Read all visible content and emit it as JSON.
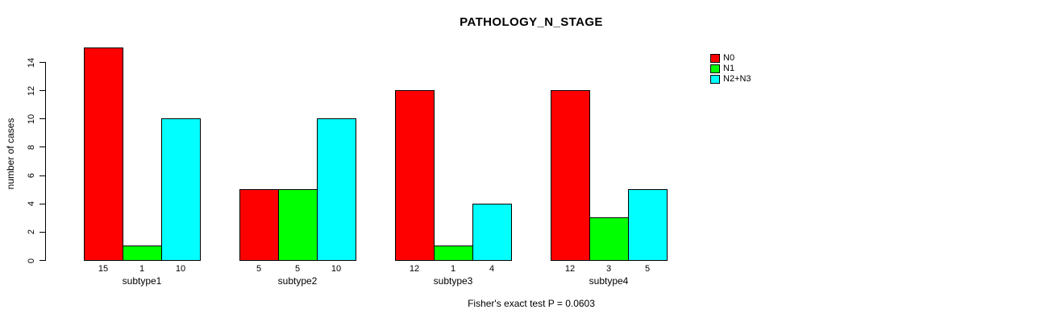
{
  "chart_data": {
    "type": "bar",
    "title": "PATHOLOGY_N_STAGE",
    "ylabel": "number of cases",
    "xlabel": "",
    "categories": [
      "subtype1",
      "subtype2",
      "subtype3",
      "subtype4"
    ],
    "series": [
      {
        "name": "N0",
        "color": "#ff0000",
        "values": [
          15,
          5,
          12,
          12
        ]
      },
      {
        "name": "N1",
        "color": "#00ff00",
        "values": [
          1,
          5,
          1,
          3
        ]
      },
      {
        "name": "N2+N3",
        "color": "#00ffff",
        "values": [
          10,
          10,
          4,
          5
        ]
      }
    ],
    "bar_value_labels_shown": true,
    "ylim": [
      0,
      15
    ],
    "yticks": [
      0,
      2,
      4,
      6,
      8,
      10,
      12,
      14
    ],
    "grid": false,
    "legend_position": "right",
    "annotation": "Fisher's exact test P = 0.0603",
    "background_color": "#ffffff",
    "axis_color": "#000000",
    "text_color": "#000000"
  }
}
